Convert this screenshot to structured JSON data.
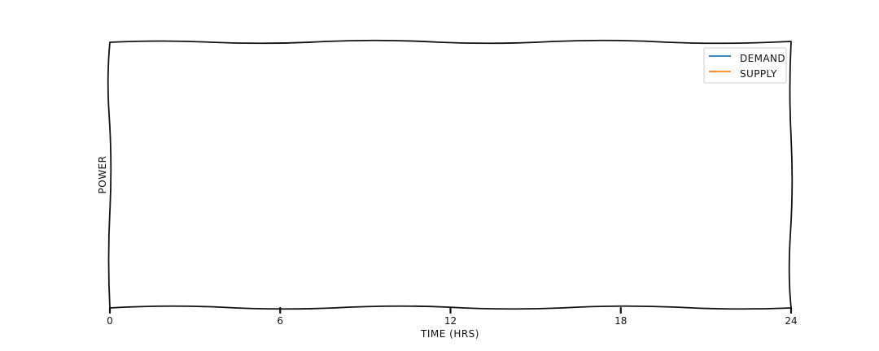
{
  "chart_data": {
    "type": "line",
    "title": "",
    "xlabel": "TIME (HRS)",
    "ylabel": "POWER",
    "xlim": [
      0,
      24
    ],
    "x_ticks": [
      0,
      6,
      12,
      18,
      24
    ],
    "x_tick_labels": [
      "0",
      "6",
      "12",
      "18",
      "24"
    ],
    "y_ticks": [],
    "grid": false,
    "legend_position": "top-right",
    "series": [
      {
        "name": "DEMAND",
        "color": "#1f77b4",
        "x": [],
        "y": []
      },
      {
        "name": "SUPPLY",
        "color": "#ff7f0e",
        "x": [],
        "y": []
      }
    ]
  }
}
